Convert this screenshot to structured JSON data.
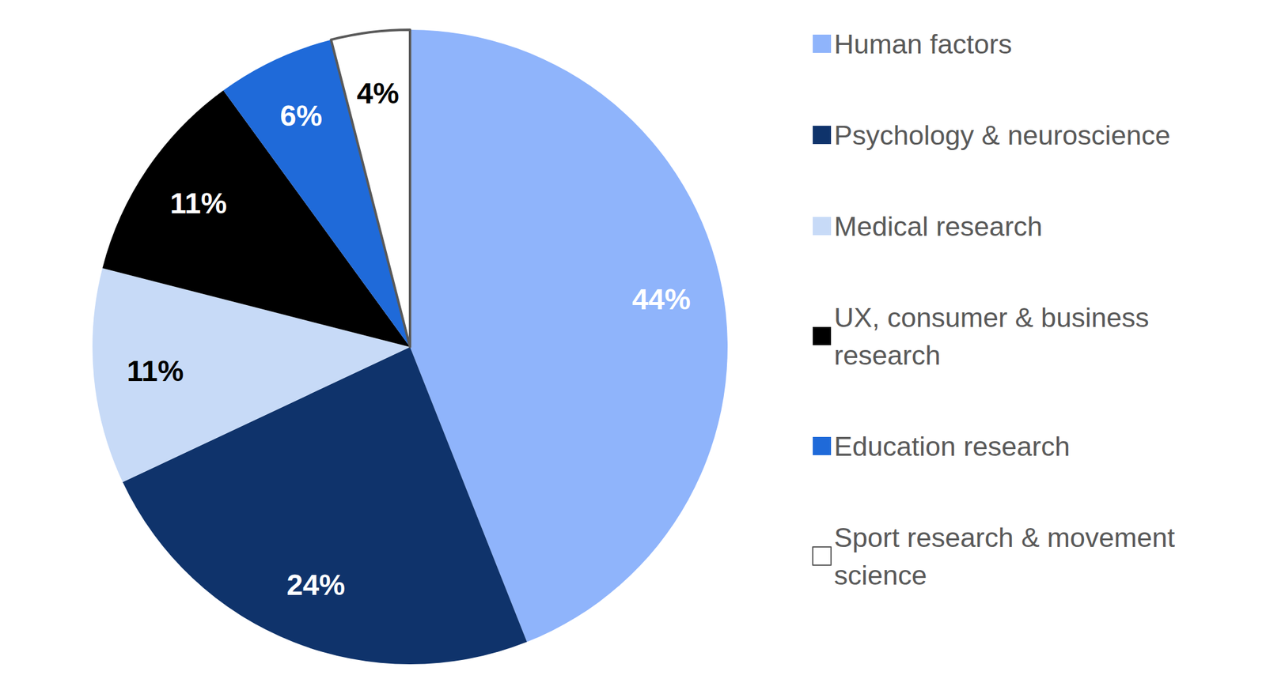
{
  "chart_data": {
    "type": "pie",
    "categories": [
      "Human factors",
      "Psychology & neuroscience",
      "Medical research",
      "UX, consumer & business research",
      "Education research",
      "Sport research & movement science"
    ],
    "values": [
      44,
      24,
      11,
      11,
      6,
      4
    ],
    "value_labels": [
      "44%",
      "24%",
      "11%",
      "11%",
      "6%",
      "4%"
    ],
    "colors": [
      "#8fb4fb",
      "#0f336b",
      "#c7daf7",
      "#000000",
      "#1f6ad9",
      "#ffffff"
    ],
    "data_labels": true,
    "legend": "right"
  }
}
